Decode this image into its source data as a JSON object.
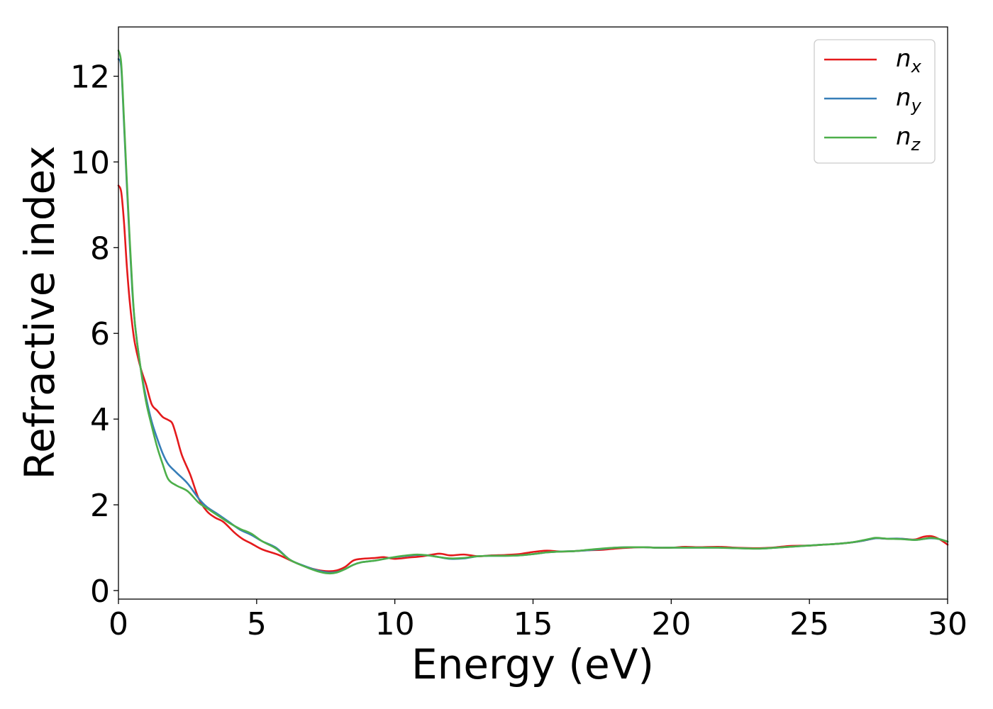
{
  "chart_data": {
    "type": "line",
    "xlabel": "Energy (eV)",
    "ylabel": "Refractive index",
    "xlim": [
      0,
      30
    ],
    "ylim": [
      -0.2,
      13.15
    ],
    "xticks": [
      "0",
      "5",
      "10",
      "15",
      "20",
      "25",
      "30"
    ],
    "yticks": [
      "0",
      "2",
      "4",
      "6",
      "8",
      "10",
      "12"
    ],
    "grid": false,
    "legend_position": "top-right",
    "series": [
      {
        "name": "n_x",
        "label_base": "n",
        "label_sub": "x",
        "color": "#e41a1c",
        "points": [
          [
            0,
            9.45
          ],
          [
            0.1,
            9.3
          ],
          [
            0.2,
            8.6
          ],
          [
            0.3,
            7.6
          ],
          [
            0.4,
            6.8
          ],
          [
            0.5,
            6.2
          ],
          [
            0.6,
            5.75
          ],
          [
            0.8,
            5.2
          ],
          [
            1.0,
            4.8
          ],
          [
            1.2,
            4.35
          ],
          [
            1.4,
            4.2
          ],
          [
            1.6,
            4.05
          ],
          [
            1.8,
            3.98
          ],
          [
            1.95,
            3.9
          ],
          [
            2.1,
            3.6
          ],
          [
            2.3,
            3.15
          ],
          [
            2.6,
            2.7
          ],
          [
            2.9,
            2.15
          ],
          [
            3.2,
            1.85
          ],
          [
            3.5,
            1.7
          ],
          [
            3.8,
            1.6
          ],
          [
            4.2,
            1.35
          ],
          [
            4.5,
            1.2
          ],
          [
            4.8,
            1.1
          ],
          [
            5.2,
            0.96
          ],
          [
            5.8,
            0.83
          ],
          [
            6.3,
            0.68
          ],
          [
            6.8,
            0.55
          ],
          [
            7.2,
            0.48
          ],
          [
            7.6,
            0.45
          ],
          [
            7.9,
            0.47
          ],
          [
            8.2,
            0.55
          ],
          [
            8.5,
            0.7
          ],
          [
            8.8,
            0.74
          ],
          [
            9.3,
            0.76
          ],
          [
            9.6,
            0.78
          ],
          [
            10.0,
            0.74
          ],
          [
            10.5,
            0.77
          ],
          [
            11.0,
            0.8
          ],
          [
            11.6,
            0.86
          ],
          [
            12.0,
            0.82
          ],
          [
            12.5,
            0.84
          ],
          [
            13.0,
            0.8
          ],
          [
            13.5,
            0.82
          ],
          [
            14.0,
            0.83
          ],
          [
            14.5,
            0.85
          ],
          [
            15.0,
            0.9
          ],
          [
            15.5,
            0.93
          ],
          [
            16.0,
            0.91
          ],
          [
            16.5,
            0.92
          ],
          [
            17.0,
            0.94
          ],
          [
            17.5,
            0.95
          ],
          [
            18.0,
            0.98
          ],
          [
            18.5,
            1.0
          ],
          [
            19.0,
            1.01
          ],
          [
            19.5,
            1.0
          ],
          [
            20.0,
            1.0
          ],
          [
            20.5,
            1.02
          ],
          [
            21.0,
            1.01
          ],
          [
            21.7,
            1.02
          ],
          [
            22.3,
            1.0
          ],
          [
            22.8,
            0.99
          ],
          [
            23.3,
            0.99
          ],
          [
            23.8,
            1.01
          ],
          [
            24.3,
            1.04
          ],
          [
            25.0,
            1.05
          ],
          [
            25.5,
            1.07
          ],
          [
            26.0,
            1.09
          ],
          [
            26.5,
            1.12
          ],
          [
            27.0,
            1.17
          ],
          [
            27.4,
            1.22
          ],
          [
            27.8,
            1.21
          ],
          [
            28.3,
            1.21
          ],
          [
            28.8,
            1.19
          ],
          [
            29.1,
            1.25
          ],
          [
            29.4,
            1.27
          ],
          [
            29.7,
            1.2
          ],
          [
            30.0,
            1.07
          ]
        ]
      },
      {
        "name": "n_y",
        "label_base": "n",
        "label_sub": "y",
        "color": "#377eb8",
        "points": [
          [
            0,
            12.4
          ],
          [
            0.1,
            12.2
          ],
          [
            0.2,
            10.9
          ],
          [
            0.3,
            9.5
          ],
          [
            0.4,
            8.2
          ],
          [
            0.5,
            7.0
          ],
          [
            0.6,
            6.2
          ],
          [
            0.8,
            5.2
          ],
          [
            1.0,
            4.5
          ],
          [
            1.2,
            3.95
          ],
          [
            1.4,
            3.55
          ],
          [
            1.6,
            3.2
          ],
          [
            1.8,
            2.95
          ],
          [
            2.1,
            2.75
          ],
          [
            2.5,
            2.5
          ],
          [
            2.9,
            2.15
          ],
          [
            3.2,
            1.95
          ],
          [
            3.6,
            1.78
          ],
          [
            4.0,
            1.6
          ],
          [
            4.4,
            1.42
          ],
          [
            4.8,
            1.3
          ],
          [
            5.2,
            1.15
          ],
          [
            5.7,
            1.0
          ],
          [
            6.2,
            0.72
          ],
          [
            6.7,
            0.58
          ],
          [
            7.2,
            0.47
          ],
          [
            7.6,
            0.42
          ],
          [
            7.9,
            0.43
          ],
          [
            8.2,
            0.5
          ],
          [
            8.5,
            0.6
          ],
          [
            8.8,
            0.66
          ],
          [
            9.3,
            0.7
          ],
          [
            9.8,
            0.76
          ],
          [
            10.3,
            0.8
          ],
          [
            10.8,
            0.83
          ],
          [
            11.2,
            0.82
          ],
          [
            11.6,
            0.78
          ],
          [
            12.0,
            0.74
          ],
          [
            12.5,
            0.75
          ],
          [
            13.0,
            0.8
          ],
          [
            13.5,
            0.81
          ],
          [
            14.0,
            0.81
          ],
          [
            14.5,
            0.82
          ],
          [
            15.0,
            0.85
          ],
          [
            15.5,
            0.89
          ],
          [
            16.0,
            0.91
          ],
          [
            16.5,
            0.92
          ],
          [
            17.0,
            0.94
          ],
          [
            17.5,
            0.97
          ],
          [
            18.0,
            1.0
          ],
          [
            18.5,
            1.01
          ],
          [
            19.0,
            1.01
          ],
          [
            19.5,
            1.0
          ],
          [
            20.0,
            1.0
          ],
          [
            20.5,
            1.0
          ],
          [
            21.0,
            1.0
          ],
          [
            21.7,
            1.0
          ],
          [
            22.3,
            0.99
          ],
          [
            22.8,
            0.98
          ],
          [
            23.3,
            0.98
          ],
          [
            23.8,
            1.0
          ],
          [
            24.3,
            1.02
          ],
          [
            25.0,
            1.05
          ],
          [
            25.5,
            1.07
          ],
          [
            26.0,
            1.09
          ],
          [
            26.5,
            1.12
          ],
          [
            27.0,
            1.17
          ],
          [
            27.4,
            1.22
          ],
          [
            27.8,
            1.21
          ],
          [
            28.3,
            1.21
          ],
          [
            28.8,
            1.18
          ],
          [
            29.1,
            1.2
          ],
          [
            29.4,
            1.22
          ],
          [
            29.7,
            1.2
          ],
          [
            30.0,
            1.14
          ]
        ]
      },
      {
        "name": "n_z",
        "label_base": "n",
        "label_sub": "z",
        "color": "#4daf4a",
        "points": [
          [
            0,
            12.6
          ],
          [
            0.1,
            12.3
          ],
          [
            0.2,
            11.0
          ],
          [
            0.3,
            9.6
          ],
          [
            0.4,
            8.3
          ],
          [
            0.5,
            7.1
          ],
          [
            0.6,
            6.2
          ],
          [
            0.8,
            5.2
          ],
          [
            1.0,
            4.4
          ],
          [
            1.2,
            3.85
          ],
          [
            1.4,
            3.35
          ],
          [
            1.6,
            2.95
          ],
          [
            1.8,
            2.6
          ],
          [
            2.1,
            2.45
          ],
          [
            2.5,
            2.32
          ],
          [
            2.9,
            2.05
          ],
          [
            3.2,
            1.92
          ],
          [
            3.6,
            1.75
          ],
          [
            4.0,
            1.58
          ],
          [
            4.4,
            1.44
          ],
          [
            4.8,
            1.33
          ],
          [
            5.2,
            1.15
          ],
          [
            5.7,
            0.98
          ],
          [
            6.2,
            0.72
          ],
          [
            6.7,
            0.57
          ],
          [
            7.2,
            0.45
          ],
          [
            7.6,
            0.4
          ],
          [
            7.9,
            0.42
          ],
          [
            8.2,
            0.5
          ],
          [
            8.5,
            0.6
          ],
          [
            8.8,
            0.66
          ],
          [
            9.3,
            0.7
          ],
          [
            9.8,
            0.76
          ],
          [
            10.3,
            0.81
          ],
          [
            10.8,
            0.84
          ],
          [
            11.2,
            0.82
          ],
          [
            11.6,
            0.78
          ],
          [
            12.0,
            0.75
          ],
          [
            12.5,
            0.76
          ],
          [
            13.0,
            0.8
          ],
          [
            13.5,
            0.81
          ],
          [
            14.0,
            0.81
          ],
          [
            14.5,
            0.82
          ],
          [
            15.0,
            0.85
          ],
          [
            15.5,
            0.89
          ],
          [
            16.0,
            0.91
          ],
          [
            16.5,
            0.92
          ],
          [
            17.0,
            0.95
          ],
          [
            17.5,
            0.98
          ],
          [
            18.0,
            1.0
          ],
          [
            18.5,
            1.01
          ],
          [
            19.0,
            1.01
          ],
          [
            19.5,
            1.0
          ],
          [
            20.0,
            1.0
          ],
          [
            20.5,
            1.0
          ],
          [
            21.0,
            1.0
          ],
          [
            21.7,
            1.0
          ],
          [
            22.3,
            0.99
          ],
          [
            22.8,
            0.98
          ],
          [
            23.3,
            0.98
          ],
          [
            23.8,
            1.0
          ],
          [
            24.3,
            1.02
          ],
          [
            25.0,
            1.05
          ],
          [
            25.5,
            1.07
          ],
          [
            26.0,
            1.09
          ],
          [
            26.5,
            1.12
          ],
          [
            27.0,
            1.18
          ],
          [
            27.4,
            1.23
          ],
          [
            27.8,
            1.21
          ],
          [
            28.3,
            1.2
          ],
          [
            28.8,
            1.18
          ],
          [
            29.1,
            1.2
          ],
          [
            29.4,
            1.23
          ],
          [
            29.7,
            1.2
          ],
          [
            30.0,
            1.14
          ]
        ]
      }
    ]
  }
}
